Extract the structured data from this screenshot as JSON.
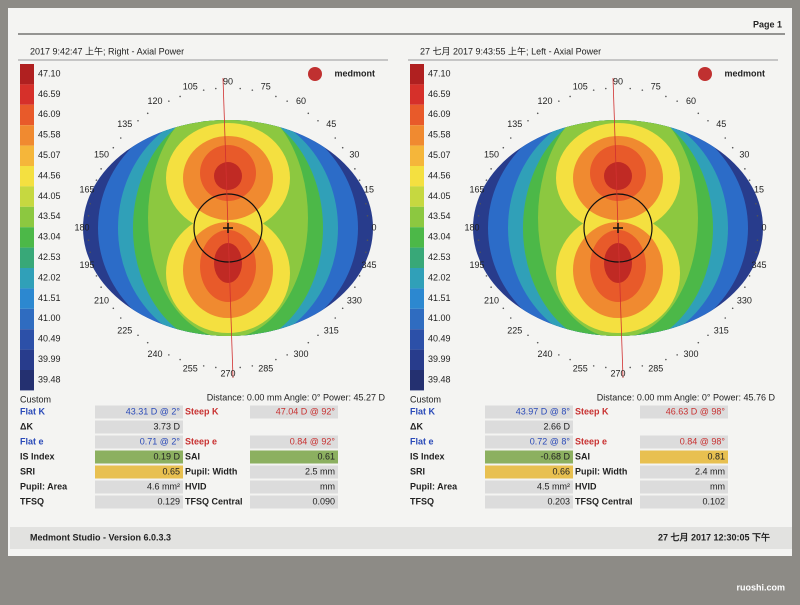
{
  "header": {
    "page": "Page 1"
  },
  "panels": [
    {
      "title": "2017 9:42:47 上午; Right - Axial Power",
      "logo": "medmont",
      "scale": [
        "47.10",
        "46.59",
        "46.09",
        "45.58",
        "45.07",
        "44.56",
        "44.05",
        "43.54",
        "43.04",
        "42.53",
        "42.02",
        "41.51",
        "41.00",
        "40.49",
        "39.99",
        "39.48"
      ],
      "scale_name": "Custom",
      "angles": [
        "90",
        "105",
        "120",
        "135",
        "150",
        "165",
        "180",
        "195",
        "210",
        "225",
        "240",
        "255",
        "270",
        "285",
        "300",
        "315",
        "330",
        "345",
        "0",
        "15",
        "30",
        "45",
        "60",
        "75"
      ],
      "distance": "Distance: 0.00 mm Angle: 0° Power: 45.27 D",
      "table": [
        [
          "Flat K",
          "43.31 D @ 2°",
          "Steep K",
          "47.04 D @ 92°"
        ],
        [
          "ΔK",
          "3.73 D"
        ],
        [
          "Flat e",
          "0.71 @ 2°",
          "Steep e",
          "0.84 @ 92°"
        ],
        [
          "IS Index",
          "0.19 D",
          "SAI",
          "0.61"
        ],
        [
          "SRI",
          "0.65",
          "Pupil: Width",
          "2.5 mm"
        ],
        [
          "Pupil: Area",
          "4.6 mm²",
          "HVID",
          "mm"
        ],
        [
          "TFSQ",
          "0.129",
          "TFSQ Central",
          "0.090"
        ]
      ]
    },
    {
      "title": "27 七月 2017 9:43:55 上午; Left - Axial Power",
      "logo": "medmont",
      "scale": [
        "47.10",
        "46.59",
        "46.09",
        "45.58",
        "45.07",
        "44.56",
        "44.05",
        "43.54",
        "43.04",
        "42.53",
        "42.02",
        "41.51",
        "41.00",
        "40.49",
        "39.99",
        "39.48"
      ],
      "scale_name": "Custom",
      "angles": [
        "90",
        "105",
        "120",
        "135",
        "150",
        "165",
        "180",
        "195",
        "210",
        "225",
        "240",
        "255",
        "270",
        "285",
        "300",
        "315",
        "330",
        "345",
        "0",
        "15",
        "30",
        "45",
        "60",
        "75"
      ],
      "distance": "Distance: 0.00 mm Angle: 0° Power: 45.76 D",
      "table": [
        [
          "Flat K",
          "43.97 D @ 8°",
          "Steep K",
          "46.63 D @ 98°"
        ],
        [
          "ΔK",
          "2.66 D"
        ],
        [
          "Flat e",
          "0.72 @ 8°",
          "Steep e",
          "0.84 @ 98°"
        ],
        [
          "IS Index",
          "-0.68 D",
          "SAI",
          "0.81"
        ],
        [
          "SRI",
          "0.66",
          "Pupil: Width",
          "2.4 mm"
        ],
        [
          "Pupil: Area",
          "4.5 mm²",
          "HVID",
          "mm"
        ],
        [
          "TFSQ",
          "0.203",
          "TFSQ Central",
          "0.102"
        ]
      ]
    }
  ],
  "footer": {
    "version": "Medmont Studio - Version 6.0.3.3",
    "date": "27 七月 2017 12:30:05 下午"
  },
  "watermark": "ruoshi.com"
}
